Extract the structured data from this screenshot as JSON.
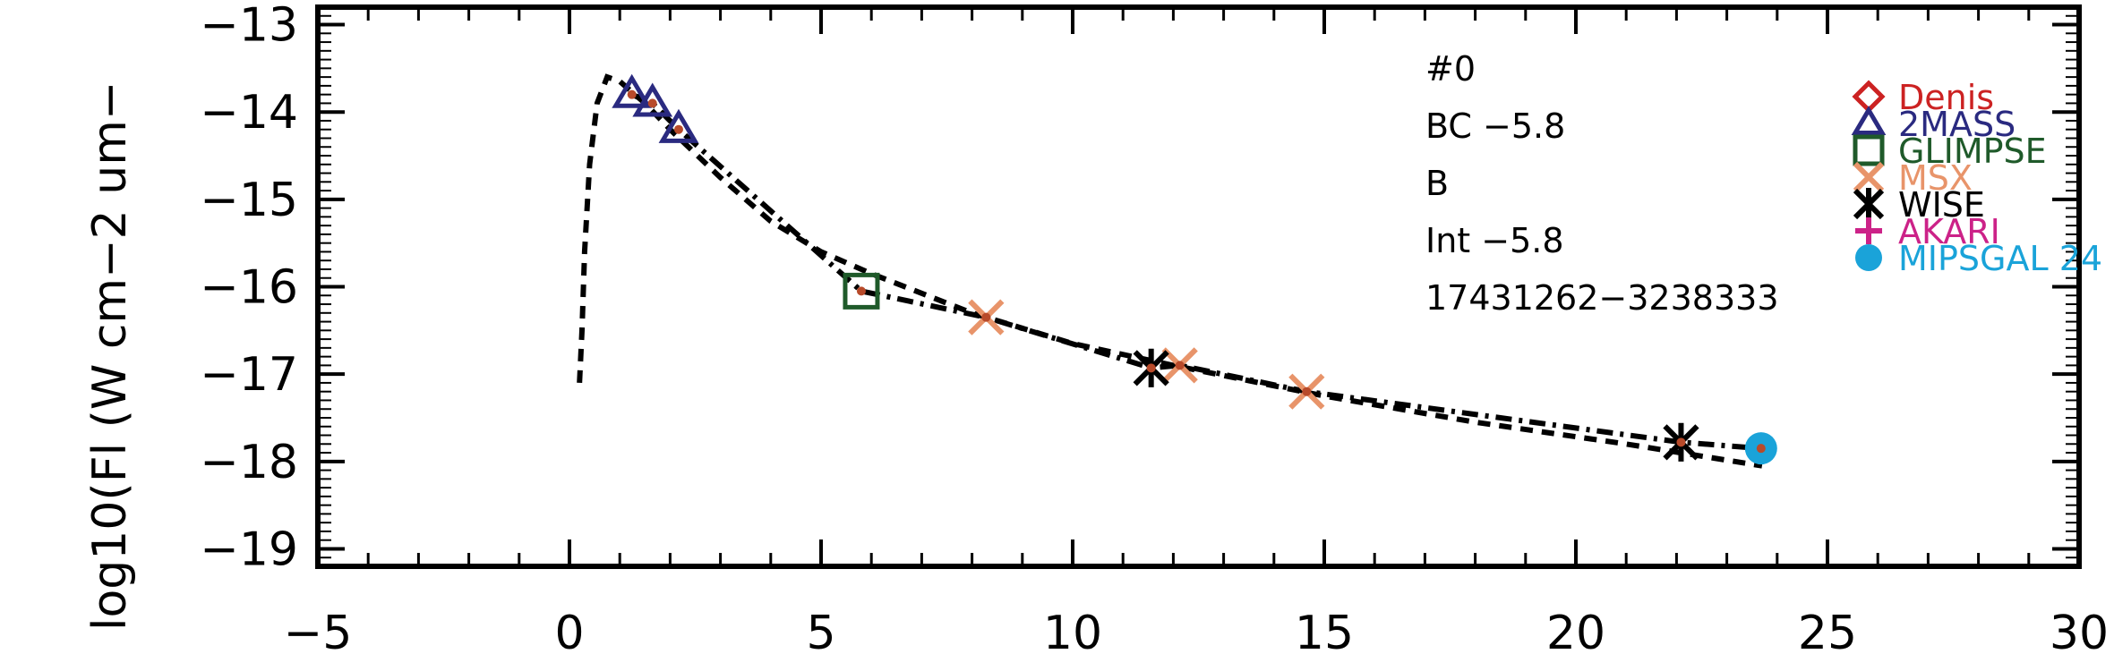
{
  "chart_data": {
    "type": "scatter",
    "title": "",
    "xlabel": "",
    "ylabel": "log10(Fl (W cm−2 um−",
    "xlim": [
      -5,
      30
    ],
    "ylim": [
      -19.2,
      -12.8
    ],
    "x_ticks": [
      -5,
      0,
      5,
      10,
      15,
      20,
      25,
      30
    ],
    "x_tick_labels": [
      "−5",
      "0",
      "5",
      "10",
      "15",
      "20",
      "25",
      "30"
    ],
    "y_ticks": [
      -13,
      -14,
      -15,
      -16,
      -17,
      -18,
      -19
    ],
    "y_tick_labels": [
      "−13",
      "−14",
      "−15",
      "−16",
      "−17",
      "−18",
      "−19"
    ],
    "annotations": [
      "#0",
      "BC −5.8",
      "B",
      "Int −5.8",
      "17431262−3238333"
    ],
    "legend_position": "right",
    "legend": [
      {
        "label": "Denis",
        "color": "#cc2222",
        "marker": "diamond"
      },
      {
        "label": "2MASS",
        "color": "#2a2a80",
        "marker": "triangle"
      },
      {
        "label": "GLIMPSE",
        "color": "#1f5a2a",
        "marker": "square"
      },
      {
        "label": "MSX",
        "color": "#e8946a",
        "marker": "x"
      },
      {
        "label": "WISE",
        "color": "#000000",
        "marker": "asterisk"
      },
      {
        "label": "AKARI",
        "color": "#cc2288",
        "marker": "plus"
      },
      {
        "label": "MIPSGAL 24",
        "color": "#1aa3d9",
        "marker": "circle"
      }
    ],
    "series": [
      {
        "name": "2MASS",
        "marker": "triangle",
        "color": "#2a2a80",
        "points": [
          {
            "x": 1.24,
            "y": -13.8
          },
          {
            "x": 1.65,
            "y": -13.9
          },
          {
            "x": 2.17,
            "y": -14.2
          }
        ]
      },
      {
        "name": "GLIMPSE",
        "marker": "square",
        "color": "#1f5a2a",
        "points": [
          {
            "x": 5.8,
            "y": -16.05
          }
        ]
      },
      {
        "name": "MSX",
        "marker": "x",
        "color": "#e8946a",
        "points": [
          {
            "x": 8.28,
            "y": -16.35
          },
          {
            "x": 12.13,
            "y": -16.9
          },
          {
            "x": 14.65,
            "y": -17.2
          }
        ]
      },
      {
        "name": "WISE",
        "marker": "asterisk",
        "color": "#000000",
        "points": [
          {
            "x": 11.56,
            "y": -16.93
          },
          {
            "x": 22.09,
            "y": -17.78
          }
        ]
      },
      {
        "name": "MIPSGAL 24",
        "marker": "circle",
        "color": "#1aa3d9",
        "points": [
          {
            "x": 23.68,
            "y": -17.85
          }
        ]
      }
    ],
    "curves": [
      {
        "style": "dashed",
        "points": [
          {
            "x": 0.2,
            "y": -17.1
          },
          {
            "x": 0.25,
            "y": -16.5
          },
          {
            "x": 0.3,
            "y": -15.6
          },
          {
            "x": 0.4,
            "y": -14.6
          },
          {
            "x": 0.55,
            "y": -13.9
          },
          {
            "x": 0.75,
            "y": -13.6
          },
          {
            "x": 1.0,
            "y": -13.65
          },
          {
            "x": 1.5,
            "y": -13.9
          },
          {
            "x": 2.0,
            "y": -14.2
          },
          {
            "x": 3.0,
            "y": -14.75
          },
          {
            "x": 4.0,
            "y": -15.25
          },
          {
            "x": 5.0,
            "y": -15.6
          },
          {
            "x": 6.0,
            "y": -15.85
          },
          {
            "x": 8.0,
            "y": -16.3
          },
          {
            "x": 10.0,
            "y": -16.65
          },
          {
            "x": 12.0,
            "y": -16.9
          },
          {
            "x": 15.0,
            "y": -17.25
          },
          {
            "x": 18.0,
            "y": -17.55
          },
          {
            "x": 21.0,
            "y": -17.8
          },
          {
            "x": 23.7,
            "y": -18.05
          }
        ]
      },
      {
        "style": "dashdot",
        "points": [
          {
            "x": 1.24,
            "y": -13.8
          },
          {
            "x": 1.65,
            "y": -13.9
          },
          {
            "x": 2.17,
            "y": -14.2
          },
          {
            "x": 5.8,
            "y": -16.05
          },
          {
            "x": 8.28,
            "y": -16.35
          },
          {
            "x": 11.56,
            "y": -16.93
          },
          {
            "x": 12.13,
            "y": -16.9
          },
          {
            "x": 14.65,
            "y": -17.2
          },
          {
            "x": 22.09,
            "y": -17.78
          },
          {
            "x": 23.68,
            "y": -17.85
          }
        ]
      }
    ]
  }
}
